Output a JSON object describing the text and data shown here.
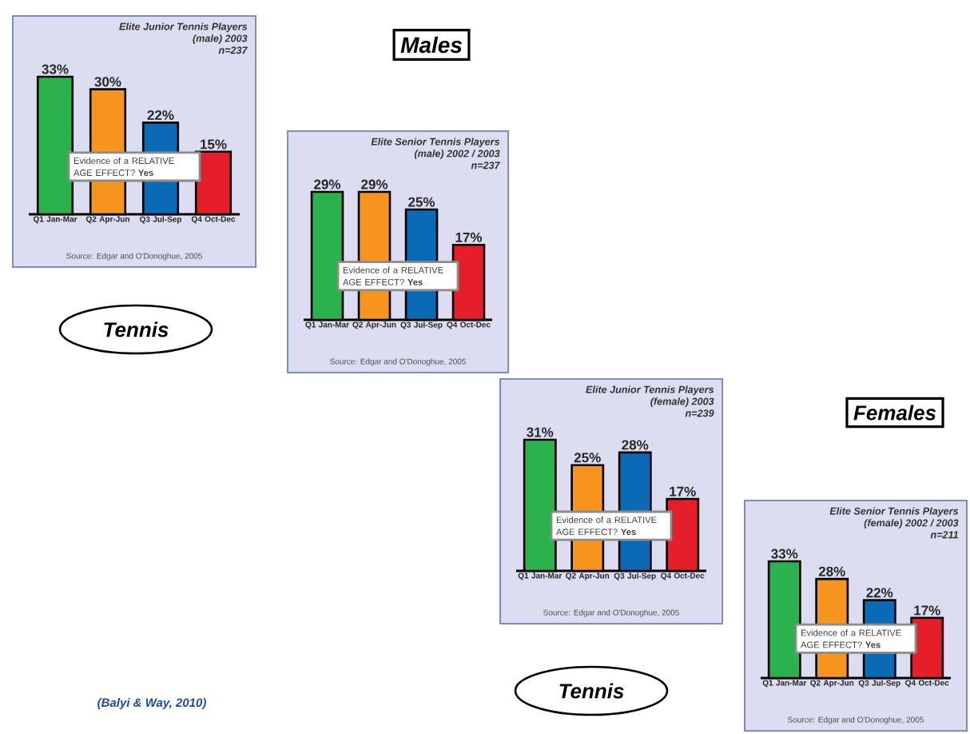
{
  "chart_data": [
    {
      "type": "bar",
      "title": "Elite Junior Tennis Players",
      "subtitle": "(male) 2003",
      "annotations": [
        "n=237",
        "Evidence of a RELATIVE AGE EFFECT? **Yes**",
        "Source: Edgar and O'Donoghue, 2005"
      ],
      "categories": [
        "Q1 Jan-Mar",
        "Q2 Apr-Jun",
        "Q3 Jul-Sep",
        "Q4 Oct-Dec"
      ],
      "values": [
        33,
        30,
        22,
        15
      ],
      "value_labels": [
        "33%",
        "30%",
        "22%",
        "15%"
      ],
      "colors": [
        "#2bb24c",
        "#f7941d",
        "#0b6ab5",
        "#e61e2a"
      ]
    },
    {
      "type": "bar",
      "title": "Elite Senior Tennis Players",
      "subtitle": "(male) 2002 / 2003",
      "annotations": [
        "n=237",
        "Evidence of a RELATIVE AGE EFFECT? **Yes**",
        "Source: Edgar and O'Donoghue, 2005"
      ],
      "categories": [
        "Q1 Jan-Mar",
        "Q2 Apr-Jun",
        "Q3 Jul-Sep",
        "Q4 Oct-Dec"
      ],
      "values": [
        29,
        29,
        25,
        17
      ],
      "value_labels": [
        "29%",
        "29%",
        "25%",
        "17%"
      ],
      "colors": [
        "#2bb24c",
        "#f7941d",
        "#0b6ab5",
        "#e61e2a"
      ]
    },
    {
      "type": "bar",
      "title": "Elite Junior Tennis Players",
      "subtitle": "(female) 2003",
      "annotations": [
        "n=239",
        "Evidence of a RELATIVE AGE EFFECT? **Yes**",
        "Source: Edgar and O'Donoghue, 2005"
      ],
      "categories": [
        "Q1 Jan-Mar",
        "Q2 Apr-Jun",
        "Q3 Jul-Sep",
        "Q4 Oct-Dec"
      ],
      "values": [
        31,
        25,
        28,
        17
      ],
      "value_labels": [
        "31%",
        "25%",
        "28%",
        "17%"
      ],
      "colors": [
        "#2bb24c",
        "#f7941d",
        "#0b6ab5",
        "#e61e2a"
      ]
    },
    {
      "type": "bar",
      "title": "Elite Senior Tennis Players",
      "subtitle": "(female) 2002 / 2003",
      "annotations": [
        "n=211",
        "Evidence of a RELATIVE AGE EFFECT? **Yes**",
        "Source: Edgar and O'Donoghue, 2005"
      ],
      "categories": [
        "Q1 Jan-Mar",
        "Q2 Apr-Jun",
        "Q3 Jul-Sep",
        "Q4 Oct-Dec"
      ],
      "values": [
        33,
        28,
        22,
        17
      ],
      "value_labels": [
        "33%",
        "28%",
        "22%",
        "17%"
      ],
      "colors": [
        "#2bb24c",
        "#f7941d",
        "#0b6ab5",
        "#e61e2a"
      ]
    },
    {
      "type": "other",
      "annotations": [
        "Males",
        "Females",
        "Tennis",
        "Tennis",
        "(Balyi & Way, 2010)"
      ]
    }
  ]
}
